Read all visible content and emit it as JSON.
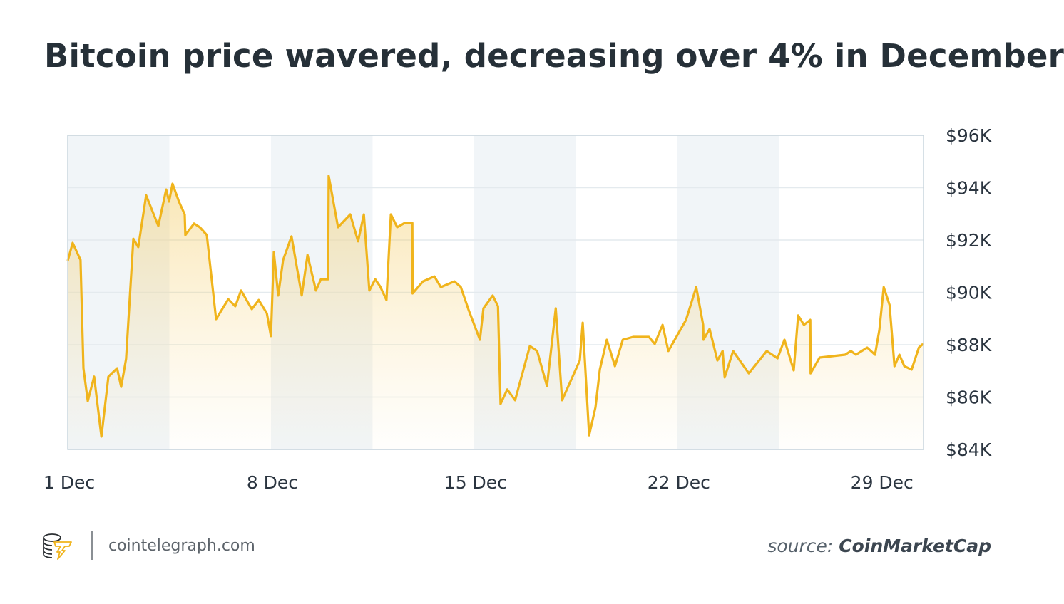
{
  "chart_data": {
    "type": "area",
    "title": "Bitcoin price wavered, decreasing over 4% in December",
    "xlabel": "",
    "ylabel": "",
    "x_unit": "day of December",
    "xlim": [
      1,
      30.48
    ],
    "ylim": [
      84000,
      96000
    ],
    "x_ticks": [
      {
        "value": 1,
        "label": "1 Dec"
      },
      {
        "value": 8,
        "label": "8 Dec"
      },
      {
        "value": 15,
        "label": "15 Dec"
      },
      {
        "value": 22,
        "label": "22 Dec"
      },
      {
        "value": 29,
        "label": "29 Dec"
      }
    ],
    "y_ticks": [
      {
        "value": 96000,
        "label": "$96K"
      },
      {
        "value": 94000,
        "label": "$94K"
      },
      {
        "value": 92000,
        "label": "$92K"
      },
      {
        "value": 90000,
        "label": "$90K"
      },
      {
        "value": 88000,
        "label": "$88K"
      },
      {
        "value": 86000,
        "label": "$86K"
      },
      {
        "value": 84000,
        "label": "$84K"
      }
    ],
    "y_axis_side": "right",
    "grid": true,
    "shaded_bands": [
      [
        1,
        4.5
      ],
      [
        8,
        11.5
      ],
      [
        15,
        18.5
      ],
      [
        22,
        25.5
      ]
    ],
    "colors": {
      "line": "#f0b41c",
      "fill": "#f7d98a",
      "band": "#f1f5f8",
      "grid": "#e4eaee",
      "frame": "#c9d5dd"
    },
    "series": [
      {
        "points": [
          [
            1.0,
            91210
          ],
          [
            1.17,
            91890
          ],
          [
            1.44,
            91240
          ],
          [
            1.54,
            87100
          ],
          [
            1.69,
            85850
          ],
          [
            1.91,
            86780
          ],
          [
            2.16,
            84490
          ],
          [
            2.4,
            86780
          ],
          [
            2.7,
            87100
          ],
          [
            2.84,
            86390
          ],
          [
            3.01,
            87460
          ],
          [
            3.26,
            92050
          ],
          [
            3.43,
            91730
          ],
          [
            3.7,
            93710
          ],
          [
            4.12,
            92540
          ],
          [
            4.39,
            93930
          ],
          [
            4.49,
            93470
          ],
          [
            4.61,
            94150
          ],
          [
            4.83,
            93470
          ],
          [
            5.03,
            92980
          ],
          [
            5.05,
            92190
          ],
          [
            5.35,
            92630
          ],
          [
            5.55,
            92490
          ],
          [
            5.79,
            92190
          ],
          [
            6.11,
            88980
          ],
          [
            6.53,
            89740
          ],
          [
            6.77,
            89470
          ],
          [
            6.97,
            90070
          ],
          [
            7.34,
            89360
          ],
          [
            7.58,
            89710
          ],
          [
            7.86,
            89200
          ],
          [
            8.0,
            88330
          ],
          [
            8.1,
            91540
          ],
          [
            8.25,
            89880
          ],
          [
            8.42,
            91240
          ],
          [
            8.71,
            92140
          ],
          [
            9.06,
            89880
          ],
          [
            9.26,
            91430
          ],
          [
            9.55,
            90070
          ],
          [
            9.72,
            90500
          ],
          [
            9.97,
            90500
          ],
          [
            9.99,
            94450
          ],
          [
            10.31,
            92490
          ],
          [
            10.73,
            92980
          ],
          [
            11.0,
            91950
          ],
          [
            11.2,
            92980
          ],
          [
            11.39,
            90070
          ],
          [
            11.59,
            90500
          ],
          [
            11.76,
            90230
          ],
          [
            11.98,
            89710
          ],
          [
            12.13,
            92980
          ],
          [
            12.35,
            92490
          ],
          [
            12.6,
            92650
          ],
          [
            12.87,
            92650
          ],
          [
            12.88,
            89960
          ],
          [
            13.24,
            90420
          ],
          [
            13.63,
            90610
          ],
          [
            13.85,
            90200
          ],
          [
            14.32,
            90420
          ],
          [
            14.54,
            90200
          ],
          [
            14.81,
            89330
          ],
          [
            15.2,
            88190
          ],
          [
            15.32,
            89390
          ],
          [
            15.64,
            89880
          ],
          [
            15.82,
            89470
          ],
          [
            15.91,
            85740
          ],
          [
            16.14,
            86290
          ],
          [
            16.41,
            85880
          ],
          [
            16.92,
            87950
          ],
          [
            17.17,
            87760
          ],
          [
            17.51,
            86420
          ],
          [
            17.81,
            89390
          ],
          [
            18.03,
            85880
          ],
          [
            18.64,
            87400
          ],
          [
            18.74,
            88840
          ],
          [
            18.96,
            84540
          ],
          [
            19.18,
            85610
          ],
          [
            19.33,
            87050
          ],
          [
            19.57,
            88190
          ],
          [
            19.85,
            87180
          ],
          [
            20.12,
            88190
          ],
          [
            20.48,
            88300
          ],
          [
            21.02,
            88300
          ],
          [
            21.22,
            88030
          ],
          [
            21.49,
            88760
          ],
          [
            21.69,
            87760
          ],
          [
            22.3,
            88950
          ],
          [
            22.65,
            90200
          ],
          [
            22.89,
            88760
          ],
          [
            22.9,
            88190
          ],
          [
            23.11,
            88600
          ],
          [
            23.38,
            87400
          ],
          [
            23.56,
            87760
          ],
          [
            23.63,
            86750
          ],
          [
            23.92,
            87760
          ],
          [
            24.46,
            86910
          ],
          [
            25.08,
            87760
          ],
          [
            25.45,
            87480
          ],
          [
            25.69,
            88190
          ],
          [
            26.01,
            87020
          ],
          [
            26.16,
            89120
          ],
          [
            26.36,
            88760
          ],
          [
            26.58,
            88950
          ],
          [
            26.59,
            86910
          ],
          [
            26.9,
            87510
          ],
          [
            27.78,
            87620
          ],
          [
            27.98,
            87760
          ],
          [
            28.15,
            87620
          ],
          [
            28.54,
            87890
          ],
          [
            28.81,
            87620
          ],
          [
            28.96,
            88570
          ],
          [
            29.11,
            90200
          ],
          [
            29.31,
            89520
          ],
          [
            29.48,
            87180
          ],
          [
            29.65,
            87620
          ],
          [
            29.82,
            87180
          ],
          [
            30.07,
            87050
          ],
          [
            30.32,
            87890
          ],
          [
            30.46,
            88030
          ]
        ]
      }
    ]
  },
  "footer": {
    "site": "cointelegraph.com",
    "logo_text": "cointelegraph",
    "source_label": "source:",
    "source_name": "CoinMarketCap"
  }
}
